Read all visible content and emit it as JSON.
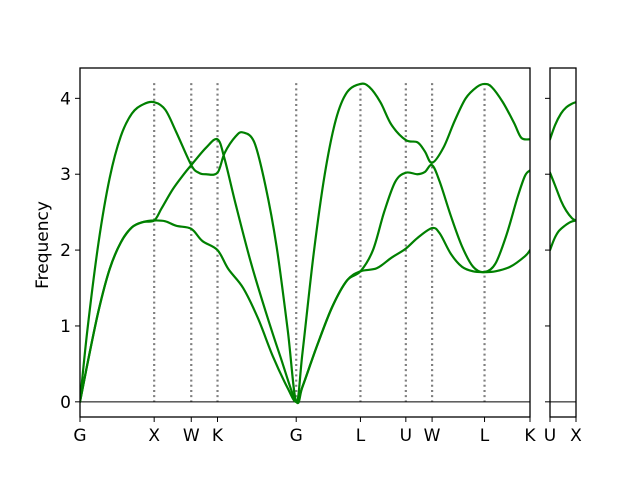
{
  "chart_data": [
    {
      "type": "line",
      "title": "",
      "xlabel": "",
      "ylabel": "Frequency",
      "ylim": [
        -0.2,
        4.4
      ],
      "grid": false,
      "legend": "none",
      "yticks": [
        0,
        1,
        2,
        3,
        4
      ],
      "colors": {
        "bands": "#008000",
        "vlines": "#7f7f7f",
        "zero_line": "#000000"
      },
      "kpoints": [
        {
          "label": "G",
          "x": 0.0
        },
        {
          "label": "X",
          "x": 1.0
        },
        {
          "label": "W",
          "x": 1.5
        },
        {
          "label": "K",
          "x": 1.854
        },
        {
          "label": "G",
          "x": 2.915
        },
        {
          "label": "L",
          "x": 3.781
        },
        {
          "label": "U",
          "x": 4.393
        },
        {
          "label": "W",
          "x": 4.747
        },
        {
          "label": "L",
          "x": 5.454
        },
        {
          "label": "K",
          "x": 6.067
        }
      ],
      "xlim": [
        0.0,
        6.067
      ],
      "series": [
        {
          "values": [
            [
              0.0,
              0.0
            ],
            [
              0.1,
              0.5
            ],
            [
              0.25,
              1.2
            ],
            [
              0.4,
              1.75
            ],
            [
              0.55,
              2.1
            ],
            [
              0.7,
              2.3
            ],
            [
              0.85,
              2.37
            ],
            [
              1.0,
              2.39
            ],
            [
              1.15,
              2.38
            ],
            [
              1.3,
              2.32
            ],
            [
              1.5,
              2.28
            ],
            [
              1.65,
              2.12
            ],
            [
              1.854,
              2.0
            ],
            [
              2.0,
              1.75
            ],
            [
              2.2,
              1.5
            ],
            [
              2.4,
              1.1
            ],
            [
              2.6,
              0.6
            ],
            [
              2.8,
              0.18
            ],
            [
              2.915,
              0.0
            ],
            [
              3.0,
              0.2
            ],
            [
              3.2,
              0.75
            ],
            [
              3.4,
              1.25
            ],
            [
              3.6,
              1.6
            ],
            [
              3.781,
              1.72
            ],
            [
              4.0,
              1.76
            ],
            [
              4.2,
              1.9
            ],
            [
              4.393,
              2.02
            ],
            [
              4.55,
              2.16
            ],
            [
              4.747,
              2.29
            ],
            [
              4.85,
              2.22
            ],
            [
              5.0,
              1.95
            ],
            [
              5.15,
              1.78
            ],
            [
              5.3,
              1.72
            ],
            [
              5.454,
              1.71
            ],
            [
              5.6,
              1.72
            ],
            [
              5.8,
              1.78
            ],
            [
              6.0,
              1.92
            ],
            [
              6.067,
              2.0
            ]
          ]
        },
        {
          "values": [
            [
              0.0,
              0.0
            ],
            [
              0.1,
              0.5
            ],
            [
              0.25,
              1.2
            ],
            [
              0.4,
              1.75
            ],
            [
              0.55,
              2.1
            ],
            [
              0.7,
              2.3
            ],
            [
              0.85,
              2.37
            ],
            [
              1.0,
              2.39
            ],
            [
              1.1,
              2.55
            ],
            [
              1.25,
              2.8
            ],
            [
              1.4,
              3.0
            ],
            [
              1.5,
              3.12
            ],
            [
              1.7,
              3.35
            ],
            [
              1.854,
              3.46
            ],
            [
              1.95,
              3.2
            ],
            [
              2.1,
              2.6
            ],
            [
              2.3,
              1.85
            ],
            [
              2.5,
              1.2
            ],
            [
              2.7,
              0.6
            ],
            [
              2.915,
              0.0
            ],
            [
              3.0,
              0.2
            ],
            [
              3.2,
              0.75
            ],
            [
              3.4,
              1.25
            ],
            [
              3.6,
              1.6
            ],
            [
              3.781,
              1.72
            ],
            [
              3.95,
              2.0
            ],
            [
              4.1,
              2.5
            ],
            [
              4.25,
              2.9
            ],
            [
              4.393,
              3.02
            ],
            [
              4.55,
              3.0
            ],
            [
              4.65,
              3.03
            ],
            [
              4.747,
              3.12
            ],
            [
              4.85,
              2.9
            ],
            [
              5.0,
              2.45
            ],
            [
              5.15,
              2.05
            ],
            [
              5.3,
              1.78
            ],
            [
              5.454,
              1.71
            ],
            [
              5.6,
              1.82
            ],
            [
              5.75,
              2.2
            ],
            [
              5.9,
              2.7
            ],
            [
              6.0,
              2.98
            ],
            [
              6.067,
              3.05
            ]
          ]
        },
        {
          "values": [
            [
              0.0,
              0.0
            ],
            [
              0.1,
              0.95
            ],
            [
              0.25,
              2.1
            ],
            [
              0.4,
              2.95
            ],
            [
              0.55,
              3.5
            ],
            [
              0.7,
              3.8
            ],
            [
              0.85,
              3.92
            ],
            [
              1.0,
              3.95
            ],
            [
              1.15,
              3.85
            ],
            [
              1.3,
              3.55
            ],
            [
              1.5,
              3.12
            ],
            [
              1.6,
              3.02
            ],
            [
              1.7,
              3.0
            ],
            [
              1.854,
              3.02
            ],
            [
              1.95,
              3.28
            ],
            [
              2.1,
              3.5
            ],
            [
              2.2,
              3.55
            ],
            [
              2.35,
              3.42
            ],
            [
              2.5,
              2.85
            ],
            [
              2.65,
              2.05
            ],
            [
              2.8,
              0.95
            ],
            [
              2.915,
              0.0
            ],
            [
              3.0,
              0.65
            ],
            [
              3.15,
              1.95
            ],
            [
              3.3,
              3.0
            ],
            [
              3.45,
              3.72
            ],
            [
              3.6,
              4.08
            ],
            [
              3.781,
              4.19
            ],
            [
              3.9,
              4.15
            ],
            [
              4.05,
              3.95
            ],
            [
              4.2,
              3.65
            ],
            [
              4.393,
              3.45
            ],
            [
              4.55,
              3.42
            ],
            [
              4.65,
              3.3
            ],
            [
              4.747,
              3.15
            ],
            [
              4.9,
              3.35
            ],
            [
              5.05,
              3.7
            ],
            [
              5.2,
              4.0
            ],
            [
              5.35,
              4.15
            ],
            [
              5.454,
              4.19
            ],
            [
              5.55,
              4.15
            ],
            [
              5.7,
              3.95
            ],
            [
              5.85,
              3.68
            ],
            [
              5.95,
              3.48
            ],
            [
              6.067,
              3.46
            ]
          ]
        }
      ]
    },
    {
      "type": "line",
      "title": "",
      "xlabel": "",
      "ylabel": "",
      "ylim": [
        -0.2,
        4.4
      ],
      "grid": false,
      "kpoints": [
        {
          "label": "U",
          "x": 0.0
        },
        {
          "label": "X",
          "x": 0.354
        }
      ],
      "xlim": [
        0.0,
        0.354
      ],
      "series": [
        {
          "values": [
            [
              0.0,
              2.0
            ],
            [
              0.06,
              2.15
            ],
            [
              0.12,
              2.25
            ],
            [
              0.2,
              2.32
            ],
            [
              0.28,
              2.37
            ],
            [
              0.354,
              2.39
            ]
          ]
        },
        {
          "values": [
            [
              0.0,
              3.02
            ],
            [
              0.07,
              2.85
            ],
            [
              0.15,
              2.65
            ],
            [
              0.22,
              2.52
            ],
            [
              0.3,
              2.42
            ],
            [
              0.354,
              2.39
            ]
          ]
        },
        {
          "values": [
            [
              0.0,
              3.46
            ],
            [
              0.07,
              3.65
            ],
            [
              0.15,
              3.8
            ],
            [
              0.22,
              3.88
            ],
            [
              0.3,
              3.93
            ],
            [
              0.354,
              3.95
            ]
          ]
        }
      ]
    }
  ]
}
